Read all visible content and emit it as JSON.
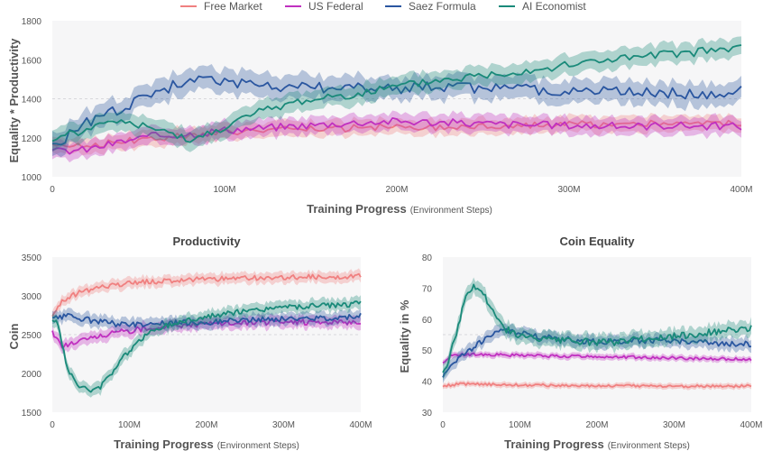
{
  "legend": [
    {
      "name": "Free Market",
      "color": "#f08080"
    },
    {
      "name": "US Federal",
      "color": "#c030c0"
    },
    {
      "name": "Saez Formula",
      "color": "#2a56a0"
    },
    {
      "name": "AI Economist",
      "color": "#1a8a7a"
    }
  ],
  "chart_data": [
    {
      "type": "line",
      "title": "",
      "xlabel": "Training Progress",
      "xlabel_note": "(Environment Steps)",
      "ylabel": "Equality * Productivity",
      "xlim": [
        0,
        400
      ],
      "ylim": [
        1000,
        1800
      ],
      "x_ticks": [
        0,
        100,
        200,
        300,
        400
      ],
      "x_tick_labels": [
        "0",
        "100M",
        "200M",
        "300M",
        "400M"
      ],
      "y_ticks": [
        1000,
        1200,
        1400,
        1600,
        1800
      ],
      "y_tick_labels": [
        "1000",
        "1200",
        "1400",
        "1600",
        "1800"
      ],
      "grid": false,
      "reference_lines": [
        1400
      ],
      "series": [
        {
          "name": "Free Market",
          "color": "#f08080",
          "band": 40,
          "x": [
            0,
            20,
            40,
            60,
            80,
            100,
            120,
            140,
            160,
            180,
            200,
            220,
            240,
            260,
            280,
            300,
            320,
            340,
            360,
            380,
            400
          ],
          "y": [
            1170,
            1160,
            1180,
            1200,
            1210,
            1230,
            1240,
            1240,
            1245,
            1250,
            1255,
            1255,
            1260,
            1265,
            1265,
            1270,
            1265,
            1270,
            1275,
            1270,
            1275
          ]
        },
        {
          "name": "US Federal",
          "color": "#c030c0",
          "band": 45,
          "x": [
            0,
            20,
            40,
            60,
            80,
            100,
            120,
            140,
            160,
            180,
            200,
            220,
            240,
            260,
            280,
            300,
            320,
            340,
            360,
            380,
            400
          ],
          "y": [
            1130,
            1140,
            1180,
            1210,
            1220,
            1240,
            1250,
            1260,
            1270,
            1280,
            1285,
            1280,
            1275,
            1270,
            1265,
            1265,
            1260,
            1260,
            1265,
            1260,
            1260
          ]
        },
        {
          "name": "Saez Formula",
          "color": "#2a56a0",
          "band": 60,
          "x": [
            0,
            20,
            40,
            60,
            80,
            100,
            120,
            140,
            160,
            180,
            200,
            220,
            240,
            260,
            280,
            300,
            320,
            340,
            360,
            380,
            400
          ],
          "y": [
            1150,
            1280,
            1350,
            1430,
            1500,
            1480,
            1470,
            1460,
            1455,
            1460,
            1450,
            1460,
            1455,
            1450,
            1445,
            1440,
            1445,
            1440,
            1430,
            1420,
            1440
          ]
        },
        {
          "name": "AI Economist",
          "color": "#1a8a7a",
          "band": 50,
          "x": [
            0,
            20,
            40,
            60,
            80,
            100,
            120,
            140,
            160,
            180,
            200,
            220,
            240,
            260,
            280,
            300,
            320,
            340,
            360,
            380,
            400
          ],
          "y": [
            1200,
            1240,
            1290,
            1240,
            1180,
            1260,
            1330,
            1380,
            1410,
            1430,
            1460,
            1490,
            1510,
            1530,
            1550,
            1570,
            1600,
            1610,
            1630,
            1645,
            1660
          ]
        }
      ]
    },
    {
      "type": "line",
      "title": "Productivity",
      "xlabel": "Training Progress",
      "xlabel_note": "(Environment Steps)",
      "ylabel": "Coin",
      "xlim": [
        0,
        400
      ],
      "ylim": [
        1500,
        3500
      ],
      "x_ticks": [
        0,
        100,
        200,
        300,
        400
      ],
      "x_tick_labels": [
        "0",
        "100M",
        "200M",
        "300M",
        "400M"
      ],
      "y_ticks": [
        1500,
        2000,
        2500,
        3000,
        3500
      ],
      "y_tick_labels": [
        "1500",
        "2000",
        "2500",
        "3000",
        "3500"
      ],
      "grid": false,
      "reference_lines": [
        2500
      ],
      "series": [
        {
          "name": "Free Market",
          "color": "#f08080",
          "band": 70,
          "x": [
            0,
            10,
            20,
            40,
            60,
            80,
            100,
            120,
            140,
            160,
            180,
            200,
            220,
            240,
            260,
            280,
            300,
            320,
            340,
            360,
            380,
            400
          ],
          "y": [
            2750,
            2900,
            2980,
            3060,
            3100,
            3140,
            3160,
            3180,
            3190,
            3200,
            3210,
            3215,
            3220,
            3225,
            3230,
            3230,
            3235,
            3240,
            3245,
            3245,
            3250,
            3260
          ]
        },
        {
          "name": "US Federal",
          "color": "#c030c0",
          "band": 80,
          "x": [
            0,
            10,
            20,
            40,
            60,
            80,
            100,
            120,
            140,
            160,
            180,
            200,
            220,
            240,
            260,
            280,
            300,
            320,
            340,
            360,
            380,
            400
          ],
          "y": [
            2550,
            2360,
            2370,
            2430,
            2480,
            2520,
            2550,
            2580,
            2600,
            2620,
            2630,
            2640,
            2645,
            2650,
            2655,
            2660,
            2660,
            2660,
            2660,
            2660,
            2660,
            2670
          ]
        },
        {
          "name": "Saez Formula",
          "color": "#2a56a0",
          "band": 80,
          "x": [
            0,
            10,
            20,
            40,
            60,
            80,
            100,
            120,
            140,
            160,
            180,
            200,
            220,
            240,
            260,
            280,
            300,
            320,
            340,
            360,
            380,
            400
          ],
          "y": [
            2700,
            2720,
            2740,
            2700,
            2670,
            2640,
            2630,
            2640,
            2650,
            2650,
            2660,
            2660,
            2670,
            2680,
            2690,
            2700,
            2700,
            2710,
            2710,
            2720,
            2730,
            2740
          ]
        },
        {
          "name": "AI Economist",
          "color": "#1a8a7a",
          "band": 80,
          "x": [
            0,
            5,
            10,
            20,
            30,
            40,
            50,
            60,
            80,
            100,
            120,
            140,
            160,
            180,
            200,
            220,
            240,
            260,
            280,
            300,
            320,
            340,
            360,
            380,
            400
          ],
          "y": [
            2650,
            2700,
            2500,
            2050,
            1880,
            1820,
            1780,
            1800,
            2050,
            2300,
            2490,
            2590,
            2650,
            2700,
            2730,
            2760,
            2790,
            2810,
            2840,
            2850,
            2850,
            2870,
            2880,
            2890,
            2900
          ]
        }
      ]
    },
    {
      "type": "line",
      "title": "Coin Equality",
      "xlabel": "Training Progress",
      "xlabel_note": "(Environment Steps)",
      "ylabel": "Equality in %",
      "xlim": [
        0,
        400
      ],
      "ylim": [
        30,
        80
      ],
      "x_ticks": [
        0,
        100,
        200,
        300,
        400
      ],
      "x_tick_labels": [
        "0",
        "100M",
        "200M",
        "300M",
        "400M"
      ],
      "y_ticks": [
        30,
        40,
        50,
        60,
        70,
        80
      ],
      "y_tick_labels": [
        "30",
        "40",
        "50",
        "60",
        "70",
        "80"
      ],
      "grid": false,
      "reference_lines": [
        55
      ],
      "series": [
        {
          "name": "Free Market",
          "color": "#f08080",
          "band": 0.9,
          "x": [
            0,
            20,
            40,
            60,
            80,
            100,
            120,
            140,
            160,
            180,
            200,
            220,
            240,
            260,
            280,
            300,
            320,
            340,
            360,
            380,
            400
          ],
          "y": [
            38.5,
            39.0,
            39.2,
            39.0,
            38.9,
            38.8,
            38.7,
            38.7,
            38.6,
            38.6,
            38.5,
            38.5,
            38.5,
            38.5,
            38.4,
            38.4,
            38.4,
            38.4,
            38.4,
            38.4,
            38.5
          ]
        },
        {
          "name": "US Federal",
          "color": "#c030c0",
          "band": 1.0,
          "x": [
            0,
            10,
            20,
            40,
            60,
            80,
            100,
            120,
            140,
            160,
            180,
            200,
            220,
            240,
            260,
            280,
            300,
            320,
            340,
            360,
            380,
            400
          ],
          "y": [
            46.0,
            48.0,
            48.5,
            48.6,
            48.5,
            48.4,
            48.3,
            48.2,
            48.1,
            48.0,
            48.0,
            47.9,
            47.8,
            47.8,
            47.7,
            47.6,
            47.5,
            47.4,
            47.3,
            47.2,
            47.1,
            47.0
          ]
        },
        {
          "name": "Saez Formula",
          "color": "#2a56a0",
          "band": 2.0,
          "x": [
            0,
            10,
            20,
            40,
            60,
            80,
            100,
            120,
            140,
            160,
            180,
            200,
            220,
            240,
            260,
            280,
            300,
            320,
            340,
            360,
            380,
            400
          ],
          "y": [
            41.0,
            44.5,
            47.0,
            51.0,
            54.5,
            56.5,
            55.5,
            54.5,
            54.0,
            53.5,
            53.0,
            52.8,
            52.8,
            52.9,
            53.0,
            53.2,
            53.0,
            52.8,
            52.5,
            52.2,
            52.0,
            52.0
          ]
        },
        {
          "name": "AI Economist",
          "color": "#1a8a7a",
          "band": 2.5,
          "x": [
            0,
            10,
            20,
            30,
            40,
            50,
            60,
            70,
            80,
            100,
            120,
            140,
            160,
            180,
            200,
            220,
            240,
            260,
            280,
            300,
            320,
            340,
            360,
            380,
            400
          ],
          "y": [
            42.0,
            49.0,
            58.0,
            67.0,
            70.5,
            69.5,
            65.0,
            60.0,
            57.0,
            54.5,
            53.8,
            53.2,
            53.0,
            52.8,
            52.5,
            52.6,
            53.0,
            53.5,
            54.0,
            54.5,
            55.0,
            55.5,
            56.0,
            56.5,
            57.0
          ]
        }
      ]
    }
  ]
}
